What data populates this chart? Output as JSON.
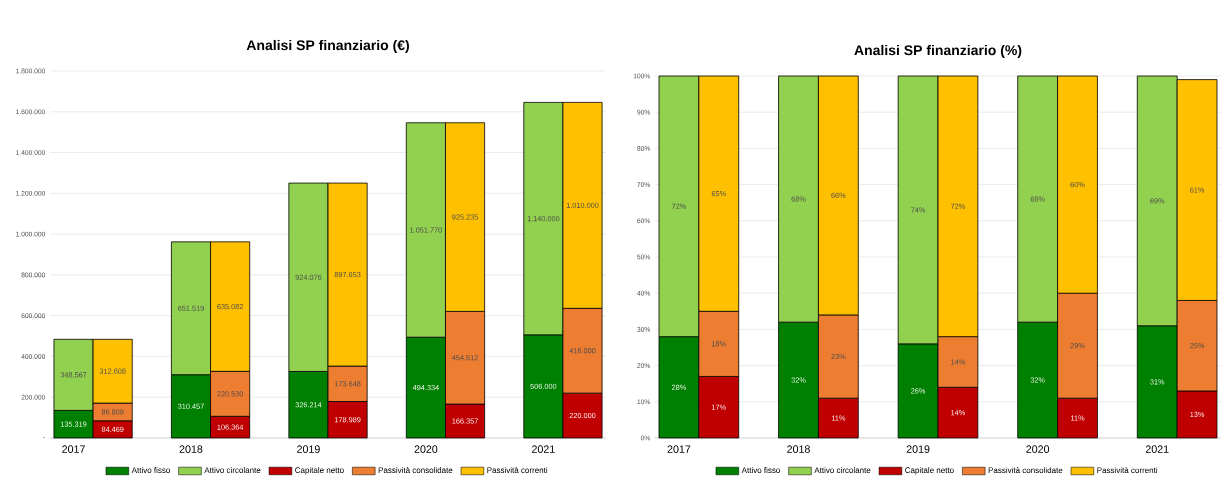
{
  "chart_data": [
    {
      "type": "bar",
      "stacked": true,
      "title": "Analisi SP finanziario (€)",
      "categories": [
        "2017",
        null,
        "2018",
        null,
        "2019",
        null,
        "2020",
        null,
        "2021",
        null
      ],
      "series": [
        {
          "name": "Attivo fisso",
          "color": "#008000",
          "values": [
            135319,
            null,
            310457,
            null,
            326214,
            null,
            494334,
            null,
            506000,
            null
          ],
          "value_labels": [
            "135.319",
            null,
            "310.457",
            null,
            "326.214",
            null,
            "494.334",
            null,
            "506.000",
            null
          ]
        },
        {
          "name": "Attivo circolante",
          "color": "#92d050",
          "values": [
            348567,
            null,
            651519,
            null,
            924076,
            null,
            1051770,
            null,
            1140000,
            null
          ],
          "value_labels": [
            "348.567",
            null,
            "651.519",
            null,
            "924.076",
            null,
            "1.051.770",
            null,
            "1.140.000",
            null
          ]
        },
        {
          "name": "Capitale netto",
          "color": "#c00000",
          "values": [
            null,
            84469,
            null,
            106364,
            null,
            178989,
            null,
            166357,
            null,
            220000
          ],
          "value_labels": [
            null,
            "84.469",
            null,
            "106.364",
            null,
            "178.989",
            null,
            "166.357",
            null,
            "220.000"
          ]
        },
        {
          "name": "Passività consolidate",
          "color": "#ed7d31",
          "values": [
            null,
            86809,
            null,
            220530,
            null,
            173648,
            null,
            454512,
            null,
            416000
          ],
          "value_labels": [
            null,
            "86.809",
            null,
            "220.530",
            null,
            "173.648",
            null,
            "454.512",
            null,
            "416.000"
          ]
        },
        {
          "name": "Passività correnti",
          "color": "#ffc000",
          "values": [
            null,
            312608,
            null,
            635082,
            null,
            897653,
            null,
            925235,
            null,
            1010000
          ],
          "value_labels": [
            null,
            "312.608",
            null,
            "635.082",
            null,
            "897.653",
            null,
            "925.235",
            null,
            "1.010.000"
          ]
        }
      ],
      "ylim": [
        0,
        1800000
      ],
      "yticks": [
        {
          "value": 0,
          "label": "-"
        },
        {
          "value": 200000,
          "label": "200.000"
        },
        {
          "value": 400000,
          "label": "400.000"
        },
        {
          "value": 600000,
          "label": "600.000"
        },
        {
          "value": 800000,
          "label": "800.000"
        },
        {
          "value": 1000000,
          "label": "1.000.000"
        },
        {
          "value": 1200000,
          "label": "1.200.000"
        },
        {
          "value": 1400000,
          "label": "1.400.000"
        },
        {
          "value": 1600000,
          "label": "1.600.000"
        },
        {
          "value": 1800000,
          "label": "1.800.000"
        }
      ],
      "grid": "y",
      "legend": "bottom"
    },
    {
      "type": "bar",
      "stacked": true,
      "title": "Analisi SP finanziario (%)",
      "categories": [
        "2017",
        null,
        "2018",
        null,
        "2019",
        null,
        "2020",
        null,
        "2021",
        null
      ],
      "series": [
        {
          "name": "Attivo fisso",
          "color": "#008000",
          "values": [
            28,
            null,
            32,
            null,
            26,
            null,
            32,
            null,
            31,
            null
          ],
          "value_labels": [
            "28%",
            null,
            "32%",
            null,
            "26%",
            null,
            "32%",
            null,
            "31%",
            null
          ]
        },
        {
          "name": "Attivo circolante",
          "color": "#92d050",
          "values": [
            72,
            null,
            68,
            null,
            74,
            null,
            68,
            null,
            69,
            null
          ],
          "value_labels": [
            "72%",
            null,
            "68%",
            null,
            "74%",
            null,
            "68%",
            null,
            "69%",
            null
          ]
        },
        {
          "name": "Capitale netto",
          "color": "#c00000",
          "values": [
            null,
            17,
            null,
            11,
            null,
            14,
            null,
            11,
            null,
            13
          ],
          "value_labels": [
            null,
            "17%",
            null,
            "11%",
            null,
            "14%",
            null,
            "11%",
            null,
            "13%"
          ]
        },
        {
          "name": "Passività consolidate",
          "color": "#ed7d31",
          "values": [
            null,
            18,
            null,
            23,
            null,
            14,
            null,
            29,
            null,
            25
          ],
          "value_labels": [
            null,
            "18%",
            null,
            "23%",
            null,
            "14%",
            null,
            "29%",
            null,
            "25%"
          ]
        },
        {
          "name": "Passività correnti",
          "color": "#ffc000",
          "values": [
            null,
            65,
            null,
            66,
            null,
            72,
            null,
            60,
            null,
            61
          ],
          "value_labels": [
            null,
            "65%",
            null,
            "66%",
            null,
            "72%",
            null,
            "60%",
            null,
            "61%"
          ]
        }
      ],
      "ylim": [
        0,
        100
      ],
      "yticks": [
        {
          "value": 0,
          "label": "0%"
        },
        {
          "value": 10,
          "label": "10%"
        },
        {
          "value": 20,
          "label": "20%"
        },
        {
          "value": 30,
          "label": "30%"
        },
        {
          "value": 40,
          "label": "40%"
        },
        {
          "value": 50,
          "label": "50%"
        },
        {
          "value": 60,
          "label": "60%"
        },
        {
          "value": 70,
          "label": "70%"
        },
        {
          "value": 80,
          "label": "80%"
        },
        {
          "value": 90,
          "label": "90%"
        },
        {
          "value": 100,
          "label": "100%"
        }
      ],
      "grid": "y",
      "legend": "bottom"
    }
  ]
}
